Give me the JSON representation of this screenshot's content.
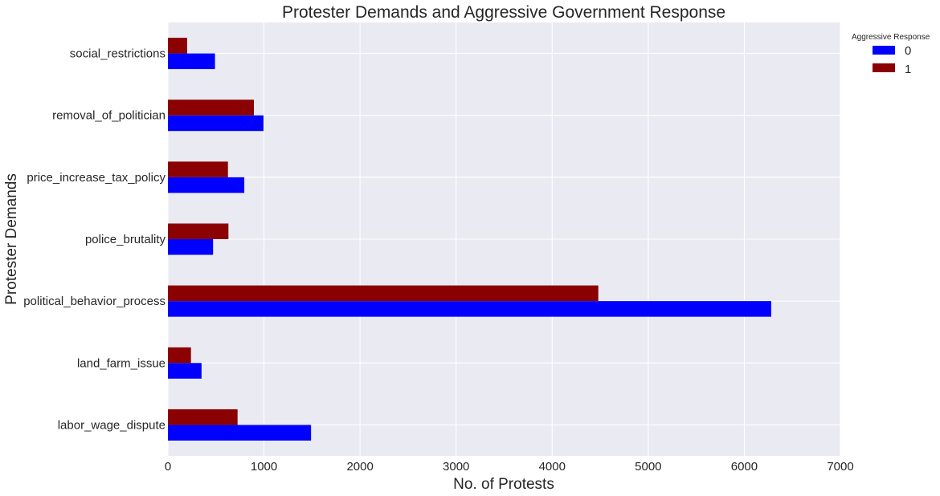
{
  "chart_data": {
    "type": "bar",
    "orientation": "horizontal",
    "title": "Protester Demands and Aggressive Government Response",
    "xlabel": "No. of Protests",
    "ylabel": "Protester Demands",
    "xlim": [
      0,
      7000
    ],
    "xticks": [
      0,
      1000,
      2000,
      3000,
      4000,
      5000,
      6000,
      7000
    ],
    "grid": true,
    "categories": [
      "labor_wage_dispute",
      "land_farm_issue",
      "political_behavior_process",
      "police_brutality",
      "price_increase_tax_policy",
      "removal_of_politician",
      "social_restrictions"
    ],
    "series": [
      {
        "name": "0",
        "color": "#0000ff",
        "values": [
          1490,
          350,
          6280,
          470,
          795,
          995,
          490
        ]
      },
      {
        "name": "1",
        "color": "#8b0000",
        "values": [
          725,
          240,
          4480,
          630,
          625,
          895,
          200
        ]
      }
    ],
    "legend": {
      "title": "Aggressive Response",
      "placement": "top-right-outside"
    }
  }
}
